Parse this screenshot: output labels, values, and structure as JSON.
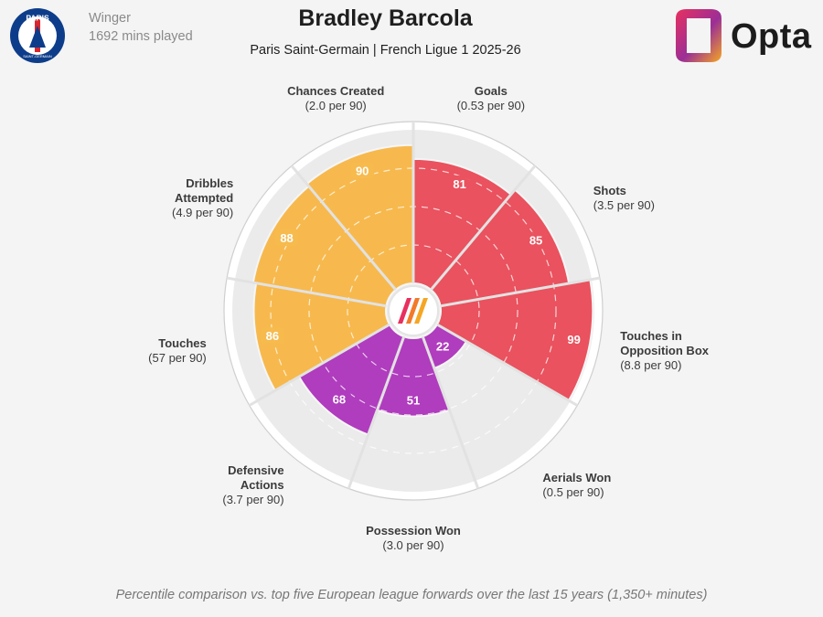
{
  "header": {
    "position": "Winger",
    "minutes": "1692 mins played",
    "title": "Bradley Barcola",
    "subtitle": "Paris Saint-Germain | French Ligue 1 2025-26"
  },
  "club_logo": {
    "text_top": "PARIS",
    "text_bottom": "SAINT-GERMAIN",
    "colors": {
      "navy": "#0d3d8a",
      "red": "#d8262e",
      "white": "#ffffff"
    }
  },
  "brand": {
    "name": "Opta",
    "colors": [
      "#e8305f",
      "#9b2f96",
      "#f5a623"
    ]
  },
  "chart_data": {
    "type": "pizza",
    "value_kind": "percentile",
    "range": [
      0,
      100
    ],
    "slices": [
      {
        "label": "Goals",
        "sub": "(0.53 per 90)",
        "value": 81,
        "group": "attacking"
      },
      {
        "label": "Shots",
        "sub": "(3.5 per 90)",
        "value": 85,
        "group": "attacking"
      },
      {
        "label": "Touches in\nOpposition Box",
        "sub": "(8.8 per 90)",
        "value": 99,
        "group": "attacking"
      },
      {
        "label": "Aerials Won",
        "sub": "(0.5 per 90)",
        "value": 22,
        "group": "defending"
      },
      {
        "label": "Possession Won",
        "sub": "(3.0 per 90)",
        "value": 51,
        "group": "defending"
      },
      {
        "label": "Defensive\nActions",
        "sub": "(3.7 per 90)",
        "value": 68,
        "group": "defending"
      },
      {
        "label": "Touches",
        "sub": "(57 per 90)",
        "value": 86,
        "group": "possession"
      },
      {
        "label": "Dribbles\nAttempted",
        "sub": "(4.9 per 90)",
        "value": 88,
        "group": "possession"
      },
      {
        "label": "Chances Created",
        "sub": "(2.0 per 90)",
        "value": 90,
        "group": "possession"
      }
    ],
    "group_colors": {
      "attacking": "#e9525e",
      "defending": "#b03cbe",
      "possession": "#f7b94d"
    },
    "background_fill": "#ebebeb"
  },
  "footnote": "Percentile comparison vs. top five European league forwards over the last 15 years (1,350+ minutes)"
}
